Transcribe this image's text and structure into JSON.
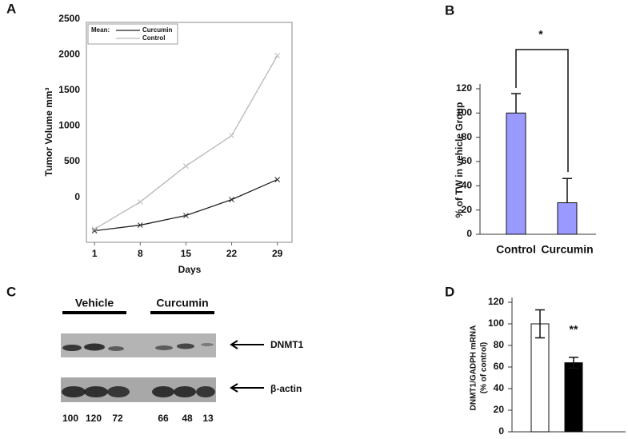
{
  "panel_labels": [
    "A",
    "B",
    "C",
    "D"
  ],
  "chart_data": [
    {
      "type": "line",
      "xlabel": "Days",
      "ylabel": "Tumor Volume mm³",
      "x": [
        1,
        8,
        15,
        22,
        29
      ],
      "xlim": [
        0,
        31
      ],
      "xticks": [
        1,
        8,
        15,
        22,
        29
      ],
      "ylim": [
        -600,
        2500
      ],
      "yticks": [
        0,
        500,
        1000,
        1500,
        2000,
        2500
      ],
      "legend_title": "Mean:",
      "series": [
        {
          "name": "Curcumin",
          "color": "#222222",
          "values": [
            -472,
            -393,
            -258,
            -34,
            247
          ]
        },
        {
          "name": "Control",
          "color": "#b8b8b8",
          "values": [
            -449,
            -67,
            438,
            865,
            1989
          ]
        }
      ]
    },
    {
      "type": "bar",
      "ylabel": "% of TW in vehicle Group",
      "categories": [
        "Control",
        "Curcumin"
      ],
      "values": [
        100,
        26
      ],
      "errors": [
        16,
        20
      ],
      "color": "#9999ff",
      "ylim": [
        0,
        120
      ],
      "yticks": [
        0,
        20,
        40,
        60,
        80,
        100,
        120
      ],
      "annotation": "*"
    },
    {
      "type": "bar",
      "ylabel": [
        "DNMT1/GADPH mRNA",
        "(% of control)"
      ],
      "values": [
        100,
        64
      ],
      "errors": [
        13,
        5
      ],
      "colors": [
        "#ffffff",
        "#000000"
      ],
      "ylim": [
        0,
        120
      ],
      "yticks": [
        0,
        20,
        40,
        60,
        80,
        100,
        120
      ],
      "annotation": "**"
    }
  ],
  "blot": {
    "groups": [
      "Vehicle",
      "Curcumin"
    ],
    "bands": [
      "DNMT1",
      "β-actin"
    ],
    "quantification": [
      100,
      120,
      72,
      66,
      48,
      13
    ]
  }
}
